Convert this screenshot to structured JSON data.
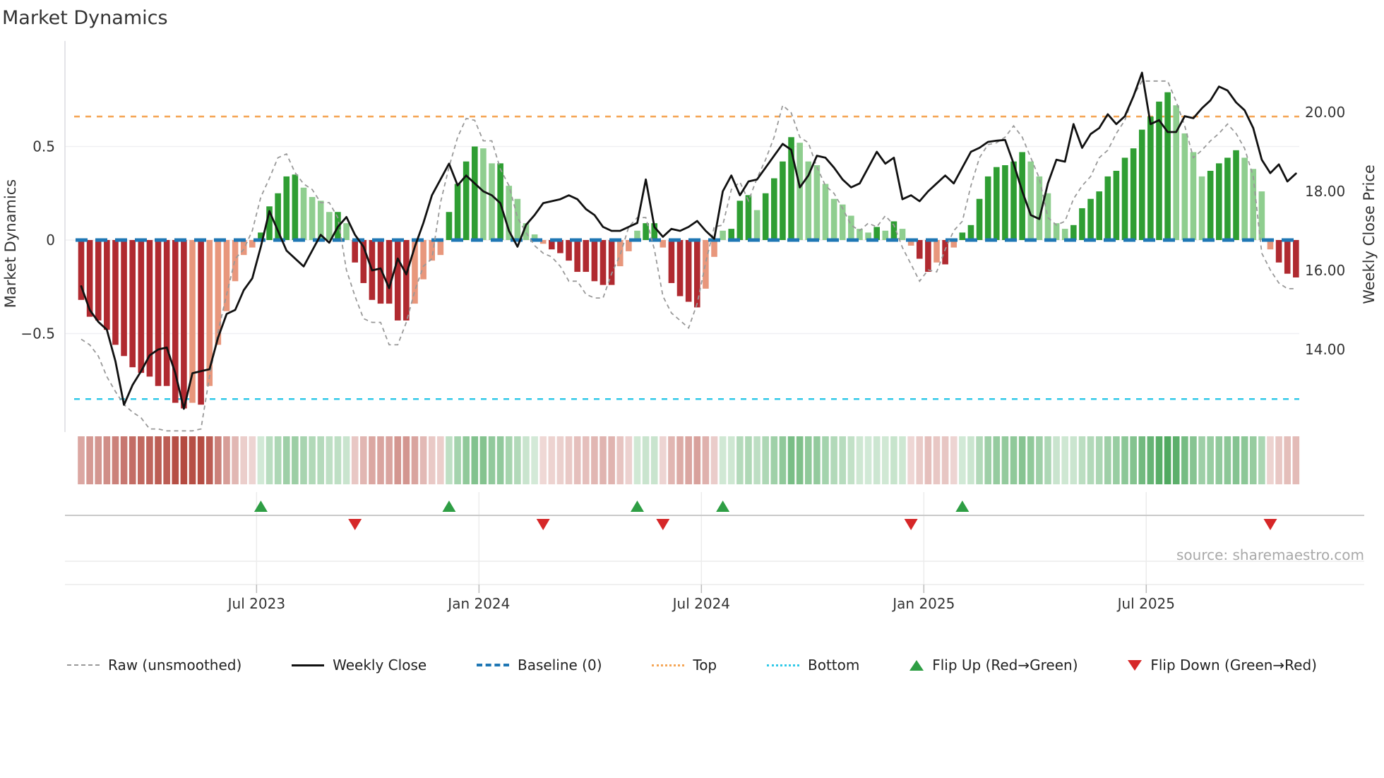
{
  "title": "Market Dynamics",
  "source_text": "source: sharemaestro.com",
  "legend": {
    "raw": "Raw (unsmoothed)",
    "weekly_close": "Weekly Close",
    "baseline": "Baseline (0)",
    "top": "Top",
    "bottom": "Bottom",
    "flip_up": "Flip Up (Red→Green)",
    "flip_down": "Flip Down (Green→Red)"
  },
  "colors": {
    "bar_green_dark": "#2f9e33",
    "bar_green_light": "#8fce8f",
    "bar_red_dark": "#b02a30",
    "bar_red_light": "#e8977c",
    "baseline_blue": "#1f77b4",
    "top_orange": "#f5a657",
    "bottom_cyan": "#30c9e8",
    "raw_gray": "#999999",
    "close_black": "#111111",
    "flip_up_green": "#2e9e44",
    "flip_down_red": "#d62728"
  },
  "chart_data": {
    "type": "bar",
    "title": "Market Dynamics",
    "ylabel_left": "Market Dynamics",
    "ylabel_right": "Weekly Close Price",
    "n_weeks": 143,
    "osc_axis": {
      "ticks": [
        {
          "label": "0.5",
          "value": 0.5
        },
        {
          "label": "0",
          "value": 0
        },
        {
          "label": "−0.5",
          "value": -0.5
        }
      ]
    },
    "price_axis": {
      "ticks": [
        {
          "label": "20.00",
          "value": 20
        },
        {
          "label": "18.00",
          "value": 18
        },
        {
          "label": "16.00",
          "value": 16
        },
        {
          "label": "14.00",
          "value": 14
        }
      ]
    },
    "x_ticks": [
      {
        "label": "Jul 2023",
        "week": 20.5
      },
      {
        "label": "Jan 2024",
        "week": 46.5
      },
      {
        "label": "Jul 2024",
        "week": 72.5
      },
      {
        "label": "Jan 2025",
        "week": 98.5
      },
      {
        "label": "Jul 2025",
        "week": 124.5
      }
    ],
    "top_threshold": 0.66,
    "bottom_threshold": -0.85,
    "baseline": 0,
    "flip_up_weeks": [
      21,
      43,
      65,
      75,
      103
    ],
    "flip_down_weeks": [
      32,
      54,
      68,
      97,
      139
    ],
    "oscillator": [
      -0.32,
      -0.41,
      -0.43,
      -0.48,
      -0.56,
      -0.62,
      -0.68,
      -0.71,
      -0.73,
      -0.78,
      -0.78,
      -0.87,
      -0.9,
      -0.87,
      -0.88,
      -0.78,
      -0.56,
      -0.38,
      -0.22,
      -0.08,
      -0.04,
      0.04,
      0.18,
      0.25,
      0.34,
      0.35,
      0.28,
      0.23,
      0.21,
      0.15,
      0.15,
      0.09,
      -0.12,
      -0.23,
      -0.32,
      -0.34,
      -0.34,
      -0.43,
      -0.43,
      -0.34,
      -0.21,
      -0.11,
      -0.08,
      0.15,
      0.3,
      0.42,
      0.5,
      0.49,
      0.41,
      0.41,
      0.29,
      0.22,
      0.09,
      0.03,
      -0.02,
      -0.05,
      -0.07,
      -0.11,
      -0.17,
      -0.17,
      -0.22,
      -0.24,
      -0.24,
      -0.14,
      -0.06,
      0.05,
      0.09,
      0.09,
      -0.04,
      -0.23,
      -0.3,
      -0.33,
      -0.36,
      -0.26,
      -0.09,
      0.05,
      0.06,
      0.21,
      0.24,
      0.16,
      0.25,
      0.33,
      0.42,
      0.55,
      0.52,
      0.42,
      0.4,
      0.3,
      0.22,
      0.19,
      0.13,
      0.06,
      0.04,
      0.07,
      0.05,
      0.1,
      0.06,
      -0.03,
      -0.1,
      -0.17,
      -0.12,
      -0.13,
      -0.04,
      0.04,
      0.08,
      0.22,
      0.34,
      0.39,
      0.4,
      0.42,
      0.47,
      0.42,
      0.34,
      0.25,
      0.09,
      0.06,
      0.08,
      0.17,
      0.22,
      0.26,
      0.34,
      0.37,
      0.44,
      0.49,
      0.59,
      0.66,
      0.74,
      0.79,
      0.72,
      0.57,
      0.47,
      0.34,
      0.37,
      0.41,
      0.44,
      0.48,
      0.44,
      0.38,
      0.26,
      -0.05,
      -0.12,
      -0.18,
      -0.2
    ],
    "raw": [
      -0.53,
      -0.56,
      -0.62,
      -0.73,
      -0.81,
      -0.88,
      -0.92,
      -0.95,
      -1.01,
      -1.01,
      -1.02,
      -1.02,
      -1.02,
      -1.02,
      -1.01,
      -0.73,
      -0.49,
      -0.29,
      -0.1,
      -0.05,
      0.05,
      0.23,
      0.33,
      0.44,
      0.46,
      0.36,
      0.3,
      0.27,
      0.2,
      0.2,
      0.12,
      -0.16,
      -0.3,
      -0.42,
      -0.44,
      -0.44,
      -0.56,
      -0.56,
      -0.44,
      -0.27,
      -0.14,
      -0.1,
      0.2,
      0.39,
      0.55,
      0.65,
      0.64,
      0.53,
      0.53,
      0.38,
      0.29,
      0.12,
      0.04,
      -0.03,
      -0.07,
      -0.09,
      -0.14,
      -0.22,
      -0.22,
      -0.29,
      -0.31,
      -0.31,
      -0.18,
      -0.08,
      0.07,
      0.12,
      0.12,
      -0.05,
      -0.3,
      -0.39,
      -0.43,
      -0.47,
      -0.34,
      -0.12,
      0.07,
      0.08,
      0.27,
      0.31,
      0.21,
      0.33,
      0.43,
      0.55,
      0.72,
      0.68,
      0.55,
      0.52,
      0.39,
      0.29,
      0.25,
      0.17,
      0.08,
      0.05,
      0.09,
      0.07,
      0.13,
      0.08,
      -0.04,
      -0.13,
      -0.22,
      -0.16,
      -0.17,
      -0.05,
      0.05,
      0.1,
      0.29,
      0.44,
      0.51,
      0.52,
      0.55,
      0.61,
      0.55,
      0.44,
      0.33,
      0.12,
      0.08,
      0.1,
      0.22,
      0.29,
      0.34,
      0.44,
      0.48,
      0.57,
      0.64,
      0.77,
      0.85,
      0.85,
      0.85,
      0.85,
      0.74,
      0.61,
      0.44,
      0.48,
      0.53,
      0.57,
      0.62,
      0.57,
      0.49,
      0.34,
      -0.07,
      -0.16,
      -0.23,
      -0.26,
      -0.26
    ],
    "weekly_close": [
      15.6,
      15.0,
      14.7,
      14.5,
      13.7,
      12.6,
      13.1,
      13.45,
      13.85,
      14.0,
      14.05,
      13.4,
      12.5,
      13.4,
      13.45,
      13.5,
      14.3,
      14.9,
      15.0,
      15.5,
      15.8,
      16.6,
      17.5,
      17.0,
      16.5,
      16.3,
      16.1,
      16.5,
      16.9,
      16.7,
      17.1,
      17.35,
      16.9,
      16.6,
      16.0,
      16.05,
      15.55,
      16.3,
      15.9,
      16.6,
      17.2,
      17.9,
      18.3,
      18.7,
      18.15,
      18.4,
      18.2,
      18.0,
      17.9,
      17.7,
      17.0,
      16.6,
      17.15,
      17.4,
      17.7,
      17.75,
      17.8,
      17.9,
      17.8,
      17.55,
      17.4,
      17.1,
      17.0,
      17.0,
      17.1,
      17.2,
      18.3,
      17.1,
      16.85,
      17.05,
      17.0,
      17.1,
      17.25,
      17.0,
      16.8,
      18.0,
      18.4,
      17.9,
      18.25,
      18.3,
      18.6,
      18.9,
      19.2,
      19.05,
      18.1,
      18.4,
      18.9,
      18.85,
      18.6,
      18.3,
      18.1,
      18.2,
      18.6,
      19.0,
      18.7,
      18.85,
      17.8,
      17.9,
      17.75,
      18.0,
      18.2,
      18.4,
      18.2,
      18.6,
      19.0,
      19.1,
      19.25,
      19.28,
      19.3,
      18.7,
      18.0,
      17.4,
      17.3,
      18.2,
      18.8,
      18.75,
      19.7,
      19.1,
      19.45,
      19.6,
      19.95,
      19.7,
      19.9,
      20.4,
      21.0,
      19.7,
      19.8,
      19.5,
      19.5,
      19.9,
      19.85,
      20.1,
      20.3,
      20.65,
      20.55,
      20.25,
      20.05,
      19.6,
      18.8,
      18.46,
      18.68,
      18.25,
      18.45
    ]
  }
}
